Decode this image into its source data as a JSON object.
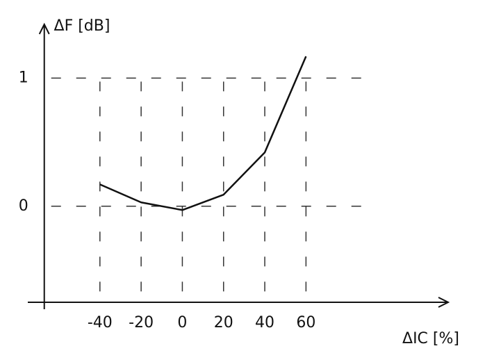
{
  "chart_data": {
    "type": "line",
    "y_label": "ΔF [dB]",
    "x_label": "ΔIC [%]",
    "x": [
      -40,
      -20,
      0,
      20,
      40,
      60
    ],
    "series": [
      {
        "color": "#111111",
        "values": [
          0.17,
          0.03,
          -0.03,
          0.09,
          0.42,
          1.17
        ]
      }
    ],
    "xlim": [
      -75,
      129
    ],
    "ylim": [
      -0.75,
      1.42
    ],
    "xticks": [
      -40,
      -20,
      0,
      20,
      40,
      60
    ],
    "yticks": [
      0,
      1
    ],
    "grid": true
  }
}
